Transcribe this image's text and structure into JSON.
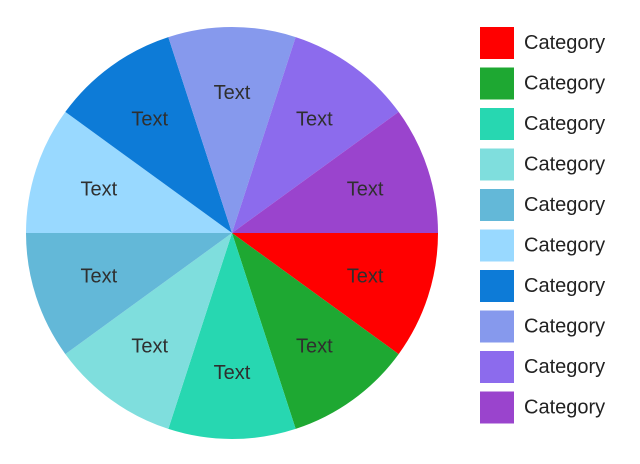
{
  "chart_data": {
    "type": "pie",
    "categories": [
      "Category",
      "Category",
      "Category",
      "Category",
      "Category",
      "Category",
      "Category",
      "Category",
      "Category",
      "Category"
    ],
    "values": [
      10,
      10,
      10,
      10,
      10,
      10,
      10,
      10,
      10,
      10
    ],
    "slice_labels": [
      "Text",
      "Text",
      "Text",
      "Text",
      "Text",
      "Text",
      "Text",
      "Text",
      "Text",
      "Text"
    ],
    "colors": [
      "#ff0000",
      "#1ea832",
      "#27d7b1",
      "#7fdedd",
      "#63b8d8",
      "#99d9ff",
      "#0d7bd7",
      "#8699ed",
      "#8c6bed",
      "#9a44cd"
    ],
    "start_direction": "east",
    "direction": "clockwise",
    "legend_position": "right"
  }
}
